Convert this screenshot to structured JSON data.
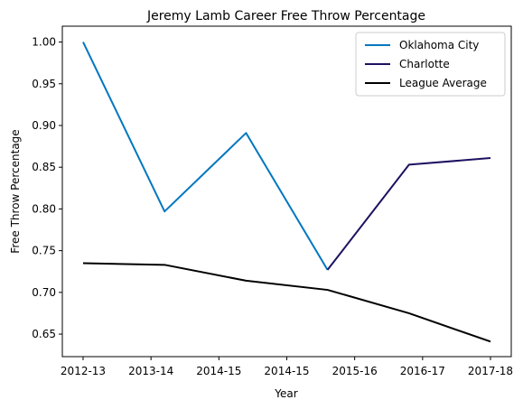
{
  "chart_data": {
    "type": "line",
    "title": "Jeremy Lamb Career Free Throw Percentage",
    "xlabel": "Year",
    "ylabel": "Free Throw Percentage",
    "categories": [
      "2012-13",
      "2013-14",
      "2014-15",
      "2014-15",
      "2015-16",
      "2016-17",
      "2017-18"
    ],
    "yticks": [
      0.65,
      0.7,
      0.75,
      0.8,
      0.85,
      0.9,
      0.95,
      1.0
    ],
    "ytick_labels": [
      "0.65",
      "0.70",
      "0.75",
      "0.80",
      "0.85",
      "0.90",
      "0.95",
      "1.00"
    ],
    "ylim": [
      0.623,
      1.019
    ],
    "legend_position": "top-right",
    "series": [
      {
        "name": "Oklahoma City",
        "color": "#0077c0",
        "points": [
          {
            "x": 0,
            "y": 1.0
          },
          {
            "x": 1,
            "y": 0.797
          },
          {
            "x": 2,
            "y": 0.891
          },
          {
            "x": 3,
            "y": 0.727
          }
        ]
      },
      {
        "name": "Charlotte",
        "color": "#1d1160",
        "points": [
          {
            "x": 3,
            "y": 0.727
          },
          {
            "x": 4,
            "y": 0.853
          },
          {
            "x": 5,
            "y": 0.861
          }
        ]
      },
      {
        "name": "League Average",
        "color": "#000000",
        "points": [
          {
            "x": 0,
            "y": 0.735
          },
          {
            "x": 1,
            "y": 0.733
          },
          {
            "x": 2,
            "y": 0.714
          },
          {
            "x": 3,
            "y": 0.703
          },
          {
            "x": 4,
            "y": 0.675
          },
          {
            "x": 5,
            "y": 0.641
          }
        ]
      }
    ]
  }
}
